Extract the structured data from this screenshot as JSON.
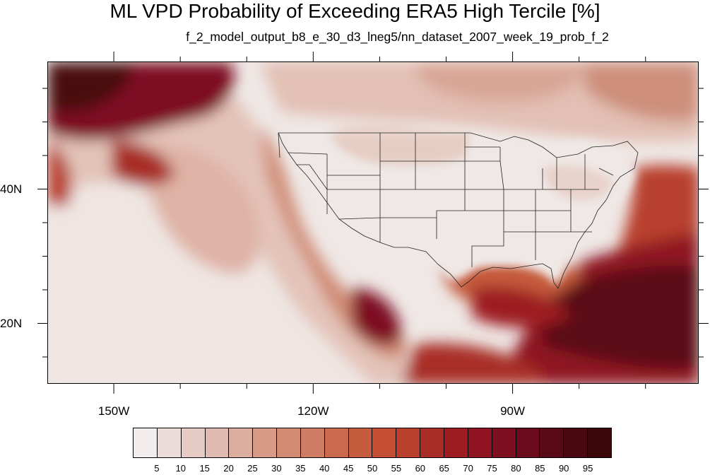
{
  "title": "ML VPD Probability of Exceeding ERA5 High Tercile [%]",
  "subtitle": "f_2_model_output_b8_e_30_d3_lneg5/nn_dataset_2007_week_19_prob_f_2",
  "map": {
    "lon_range": [
      -160,
      -62
    ],
    "lat_range": [
      11,
      59
    ],
    "lon_ticks": [
      {
        "value": -150,
        "label": "150W"
      },
      {
        "value": -120,
        "label": "120W"
      },
      {
        "value": -90,
        "label": "90W"
      }
    ],
    "lat_ticks": [
      {
        "value": 40,
        "label": "40N"
      },
      {
        "value": 20,
        "label": "20N"
      }
    ]
  },
  "colorbar": {
    "labels": [
      "5",
      "10",
      "15",
      "20",
      "25",
      "30",
      "35",
      "40",
      "45",
      "50",
      "55",
      "60",
      "65",
      "70",
      "75",
      "80",
      "85",
      "90",
      "95"
    ],
    "colors": [
      "#f2ecec",
      "#ecdcd9",
      "#e6ccc5",
      "#e0bbb1",
      "#dcae9f",
      "#d79a87",
      "#d38a73",
      "#ce7c63",
      "#c9694d",
      "#c65c3e",
      "#c34e33",
      "#b8402d",
      "#a82d26",
      "#9d1c21",
      "#8f1320",
      "#7e0f20",
      "#6b0c1c",
      "#5a0a17",
      "#4a0810",
      "#3c0708"
    ]
  }
}
